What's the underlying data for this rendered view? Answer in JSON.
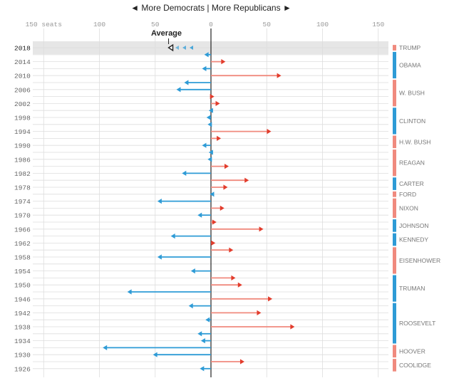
{
  "header": {
    "left_arrow": "◄",
    "text": "More Democrats | More Republicans",
    "right_arrow": "►"
  },
  "colors": {
    "democrat": "#2e9bd6",
    "republican": "#e23c2c",
    "rep_line": "#f08a7e",
    "grid": "#dddddd",
    "highlight": "#e6e6e6"
  },
  "chart_data": {
    "type": "bar",
    "orientation": "horizontal",
    "xlim": [
      -150,
      150
    ],
    "x_ticks": [
      {
        "value": -150,
        "label": "150 seats"
      },
      {
        "value": -100,
        "label": "100"
      },
      {
        "value": -50,
        "label": "50"
      },
      {
        "value": 0,
        "label": "0"
      },
      {
        "value": 50,
        "label": "50"
      },
      {
        "value": 100,
        "label": "100"
      },
      {
        "value": 150,
        "label": "150"
      }
    ],
    "grid": true,
    "average": {
      "label": "Average",
      "value": -38
    },
    "current_year": "2018",
    "years": [
      "2018",
      "2014",
      "2010",
      "2006",
      "2002",
      "1998",
      "1994",
      "1990",
      "1986",
      "1982",
      "1978",
      "1974",
      "1970",
      "1966",
      "1962",
      "1958",
      "1954",
      "1950",
      "1946",
      "1942",
      "1938",
      "1934",
      "1930",
      "1926"
    ],
    "elections": [
      {
        "year": 2018,
        "value": null
      },
      {
        "year": 2016,
        "value": -6
      },
      {
        "year": 2014,
        "value": 13
      },
      {
        "year": 2012,
        "value": -8
      },
      {
        "year": 2010,
        "value": 63
      },
      {
        "year": 2008,
        "value": -24
      },
      {
        "year": 2006,
        "value": -31
      },
      {
        "year": 2004,
        "value": 3
      },
      {
        "year": 2002,
        "value": 8
      },
      {
        "year": 2000,
        "value": -2
      },
      {
        "year": 1998,
        "value": -4
      },
      {
        "year": 1996,
        "value": -3
      },
      {
        "year": 1994,
        "value": 54
      },
      {
        "year": 1992,
        "value": 9
      },
      {
        "year": 1990,
        "value": -8
      },
      {
        "year": 1988,
        "value": -2
      },
      {
        "year": 1986,
        "value": -3
      },
      {
        "year": 1984,
        "value": 16
      },
      {
        "year": 1982,
        "value": -26
      },
      {
        "year": 1980,
        "value": 34
      },
      {
        "year": 1978,
        "value": 15
      },
      {
        "year": 1976,
        "value": -1
      },
      {
        "year": 1974,
        "value": -48
      },
      {
        "year": 1972,
        "value": 12
      },
      {
        "year": 1970,
        "value": -12
      },
      {
        "year": 1968,
        "value": 5
      },
      {
        "year": 1966,
        "value": 47
      },
      {
        "year": 1964,
        "value": -36
      },
      {
        "year": 1962,
        "value": 4
      },
      {
        "year": 1960,
        "value": 20
      },
      {
        "year": 1958,
        "value": -48
      },
      {
        "year": 1956,
        "value": 0
      },
      {
        "year": 1954,
        "value": -18
      },
      {
        "year": 1952,
        "value": 22
      },
      {
        "year": 1950,
        "value": 28
      },
      {
        "year": 1948,
        "value": -75
      },
      {
        "year": 1946,
        "value": 55
      },
      {
        "year": 1944,
        "value": -20
      },
      {
        "year": 1942,
        "value": 45
      },
      {
        "year": 1940,
        "value": -5
      },
      {
        "year": 1938,
        "value": 75
      },
      {
        "year": 1936,
        "value": -12
      },
      {
        "year": 1934,
        "value": -9
      },
      {
        "year": 1932,
        "value": -97
      },
      {
        "year": 1930,
        "value": -52
      },
      {
        "year": 1928,
        "value": 30
      },
      {
        "year": 1926,
        "value": -10
      }
    ],
    "presidents": [
      {
        "name": "TRUMP",
        "party": "R",
        "from": 2018,
        "to": 2018
      },
      {
        "name": "OBAMA",
        "party": "D",
        "from": 2016,
        "to": 2010
      },
      {
        "name": "W. BUSH",
        "party": "R",
        "from": 2008,
        "to": 2002
      },
      {
        "name": "CLINTON",
        "party": "D",
        "from": 2000,
        "to": 1994
      },
      {
        "name": "H.W. BUSH",
        "party": "R",
        "from": 1992,
        "to": 1990
      },
      {
        "name": "REAGAN",
        "party": "R",
        "from": 1988,
        "to": 1982
      },
      {
        "name": "CARTER",
        "party": "D",
        "from": 1980,
        "to": 1978
      },
      {
        "name": "FORD",
        "party": "R",
        "from": 1976,
        "to": 1976
      },
      {
        "name": "NIXON",
        "party": "R",
        "from": 1974,
        "to": 1970
      },
      {
        "name": "JOHNSON",
        "party": "D",
        "from": 1968,
        "to": 1966
      },
      {
        "name": "KENNEDY",
        "party": "D",
        "from": 1964,
        "to": 1962
      },
      {
        "name": "EISENHOWER",
        "party": "R",
        "from": 1960,
        "to": 1954
      },
      {
        "name": "TRUMAN",
        "party": "D",
        "from": 1952,
        "to": 1946
      },
      {
        "name": "ROOSEVELT",
        "party": "D",
        "from": 1944,
        "to": 1934
      },
      {
        "name": "HOOVER",
        "party": "R",
        "from": 1932,
        "to": 1930
      },
      {
        "name": "COOLIDGE",
        "party": "R",
        "from": 1928,
        "to": 1926
      }
    ]
  }
}
